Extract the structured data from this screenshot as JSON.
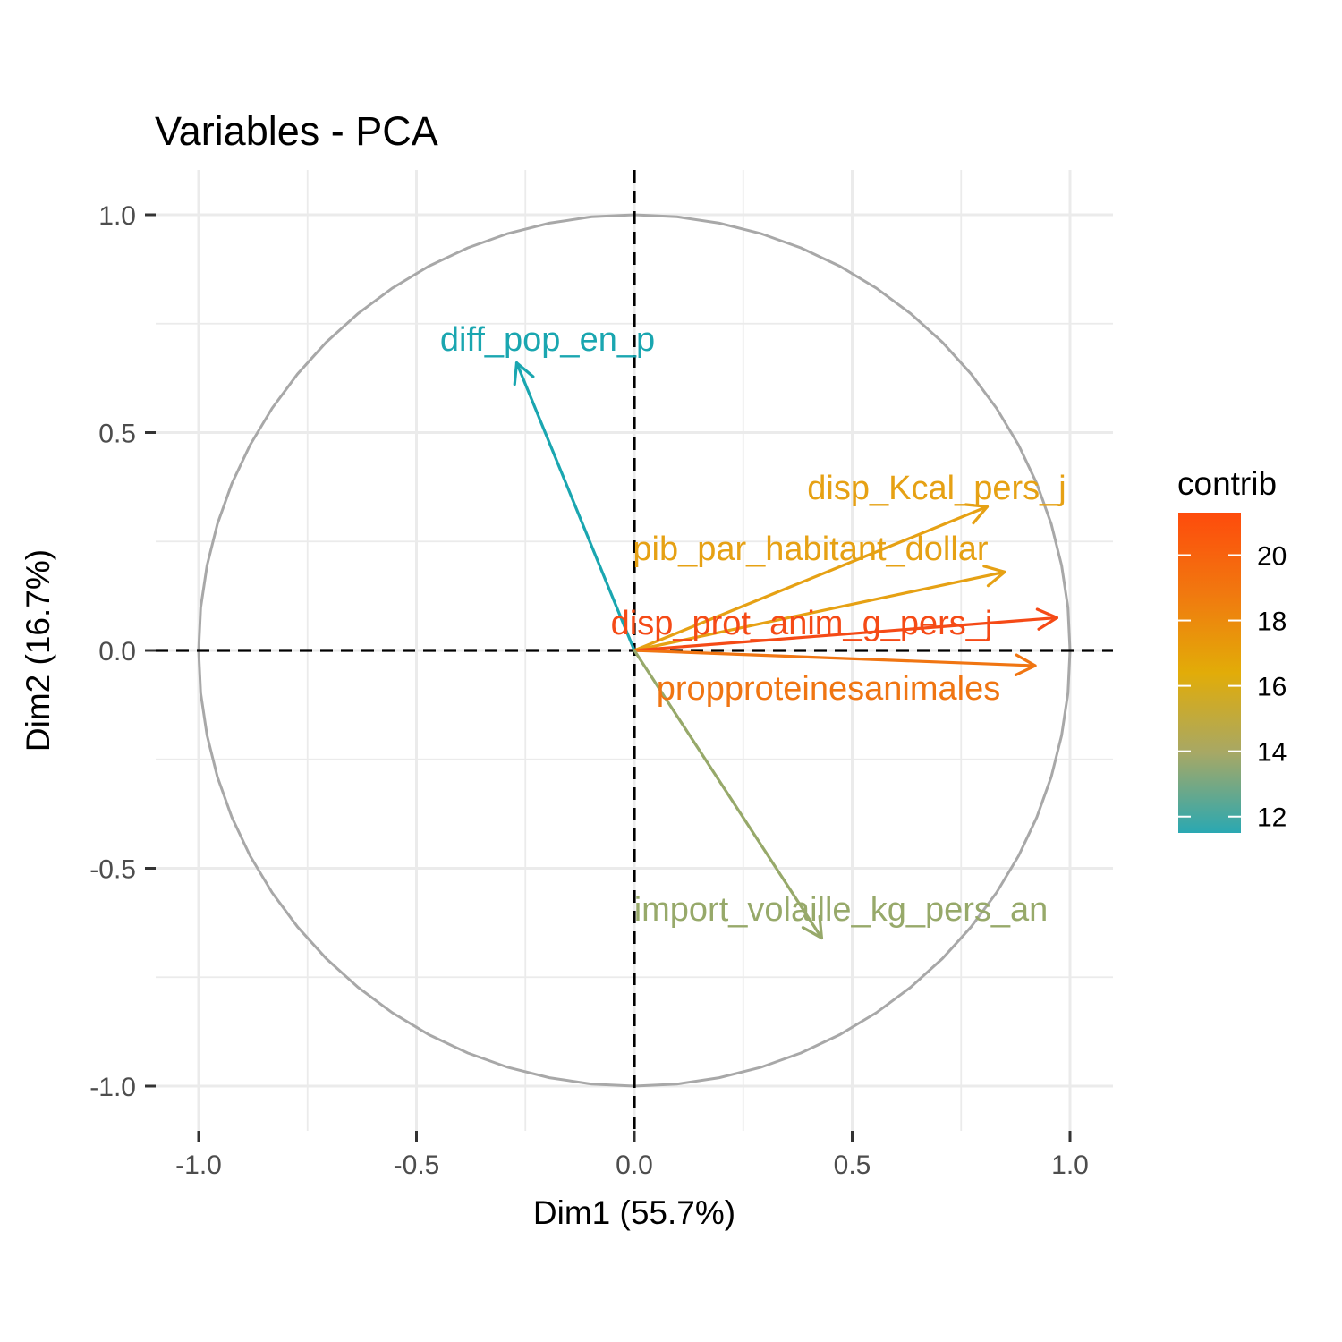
{
  "chart_data": {
    "type": "scatter",
    "subtype": "pca-variable-correlation-circle",
    "title": "Variables - PCA",
    "xlabel": "Dim1 (55.7%)",
    "ylabel": "Dim2 (16.7%)",
    "xlim": [
      -1.1,
      1.1
    ],
    "ylim": [
      -1.1,
      1.1
    ],
    "x_ticks": [
      "-1.0",
      "-0.5",
      "0.0",
      "0.5",
      "1.0"
    ],
    "y_ticks": [
      "1.0",
      "0.5",
      "0.0",
      "-0.5",
      "-1.0"
    ],
    "x_tick_values": [
      -1.0,
      -0.5,
      0.0,
      0.5,
      1.0
    ],
    "y_tick_values": [
      1.0,
      0.5,
      0.0,
      -0.5,
      -1.0
    ],
    "grid": true,
    "unit_circle": true,
    "reference_lines": {
      "x0": "dashed",
      "y0": "dashed"
    },
    "variables": [
      {
        "name": "diff_pop_en_p",
        "x": -0.27,
        "y": 0.66,
        "contrib": 12.1,
        "color": "#1aa6b0"
      },
      {
        "name": "disp_Kcal_pers_j",
        "x": 0.81,
        "y": 0.33,
        "contrib": 17.0,
        "color": "#e6a114"
      },
      {
        "name": "pib_par_habitant_dollar",
        "x": 0.85,
        "y": 0.18,
        "contrib": 17.0,
        "color": "#e6a114"
      },
      {
        "name": "disp_prot_anim_g_pers_j",
        "x": 0.97,
        "y": 0.075,
        "contrib": 21.0,
        "color": "#f54a16"
      },
      {
        "name": "propproteinesanimales",
        "x": 0.92,
        "y": -0.035,
        "contrib": 19.0,
        "color": "#f07512"
      },
      {
        "name": "import_volaille_kg_pers_an",
        "x": 0.43,
        "y": -0.66,
        "contrib": 14.0,
        "color": "#97a96a"
      }
    ],
    "legend": {
      "title": "contrib",
      "position": "right",
      "tick_labels": [
        "20",
        "18",
        "16",
        "14",
        "12"
      ],
      "tick_values": [
        20,
        18,
        16,
        14,
        12
      ],
      "range": [
        11.5,
        21.3
      ],
      "gradient": [
        "#2aa8b2",
        "#a7a865",
        "#e2ac08",
        "#f1780f",
        "#fe4b0c"
      ]
    }
  }
}
